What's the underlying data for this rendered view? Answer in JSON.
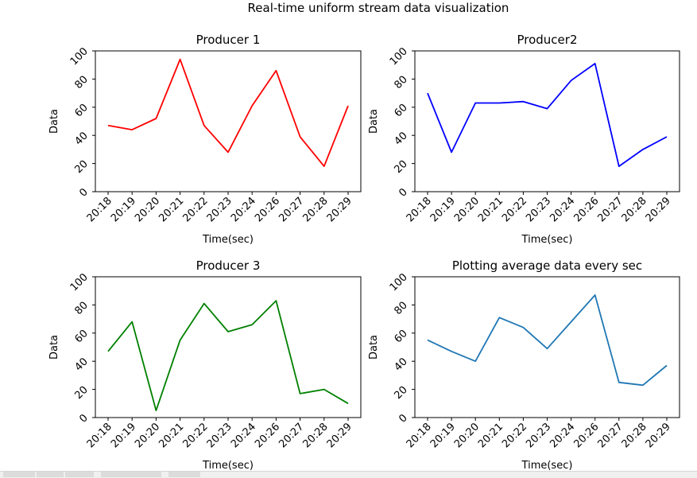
{
  "window": {
    "suptitle": "Real-time uniform stream data visualization"
  },
  "colors": {
    "producer1": "#ff0000",
    "producer2": "#0000ff",
    "producer3": "#008000",
    "average": "#1f77b4",
    "axes": "#000000",
    "background": "#ffffff"
  },
  "chart_data": [
    {
      "type": "line",
      "title": "Producer 1",
      "xlabel": "Time(sec)",
      "ylabel": "Data",
      "ylim": [
        0,
        100
      ],
      "yticks": [
        "0",
        "20",
        "40",
        "60",
        "80",
        "100"
      ],
      "categories": [
        "20:18",
        "20:19",
        "20:20",
        "20:21",
        "20:22",
        "20:23",
        "20:24",
        "20:26",
        "20:27",
        "20:28",
        "20:29"
      ],
      "values": [
        47,
        44,
        52,
        94,
        47,
        28,
        61,
        86,
        39,
        18,
        61
      ],
      "color": "#ff0000",
      "grid": false
    },
    {
      "type": "line",
      "title": "Producer2",
      "xlabel": "Time(sec)",
      "ylabel": "Data",
      "ylim": [
        0,
        100
      ],
      "yticks": [
        "0",
        "20",
        "40",
        "60",
        "80",
        "100"
      ],
      "categories": [
        "20:18",
        "20:19",
        "20:20",
        "20:21",
        "20:22",
        "20:23",
        "20:24",
        "20:26",
        "20:27",
        "20:28",
        "20:29"
      ],
      "values": [
        70,
        28,
        63,
        63,
        64,
        59,
        79,
        91,
        18,
        30,
        39
      ],
      "color": "#0000ff",
      "grid": false
    },
    {
      "type": "line",
      "title": "Producer 3",
      "xlabel": "Time(sec)",
      "ylabel": "Data",
      "ylim": [
        0,
        100
      ],
      "yticks": [
        "0",
        "20",
        "40",
        "60",
        "80",
        "100"
      ],
      "categories": [
        "20:18",
        "20:19",
        "20:20",
        "20:21",
        "20:22",
        "20:23",
        "20:24",
        "20:26",
        "20:27",
        "20:28",
        "20:29"
      ],
      "values": [
        47,
        68,
        5,
        55,
        81,
        61,
        66,
        83,
        17,
        20,
        10
      ],
      "color": "#008000",
      "grid": false
    },
    {
      "type": "line",
      "title": "Plotting average data every sec",
      "xlabel": "Time(sec)",
      "ylabel": "Data",
      "ylim": [
        0,
        100
      ],
      "yticks": [
        "0",
        "20",
        "40",
        "60",
        "80",
        "100"
      ],
      "categories": [
        "20:18",
        "20:19",
        "20:20",
        "20:21",
        "20:22",
        "20:23",
        "20:24",
        "20:26",
        "20:27",
        "20:28",
        "20:29"
      ],
      "values": [
        55,
        47,
        40,
        71,
        64,
        49,
        68,
        87,
        25,
        23,
        37
      ],
      "color": "#1f77b4",
      "grid": false
    }
  ]
}
